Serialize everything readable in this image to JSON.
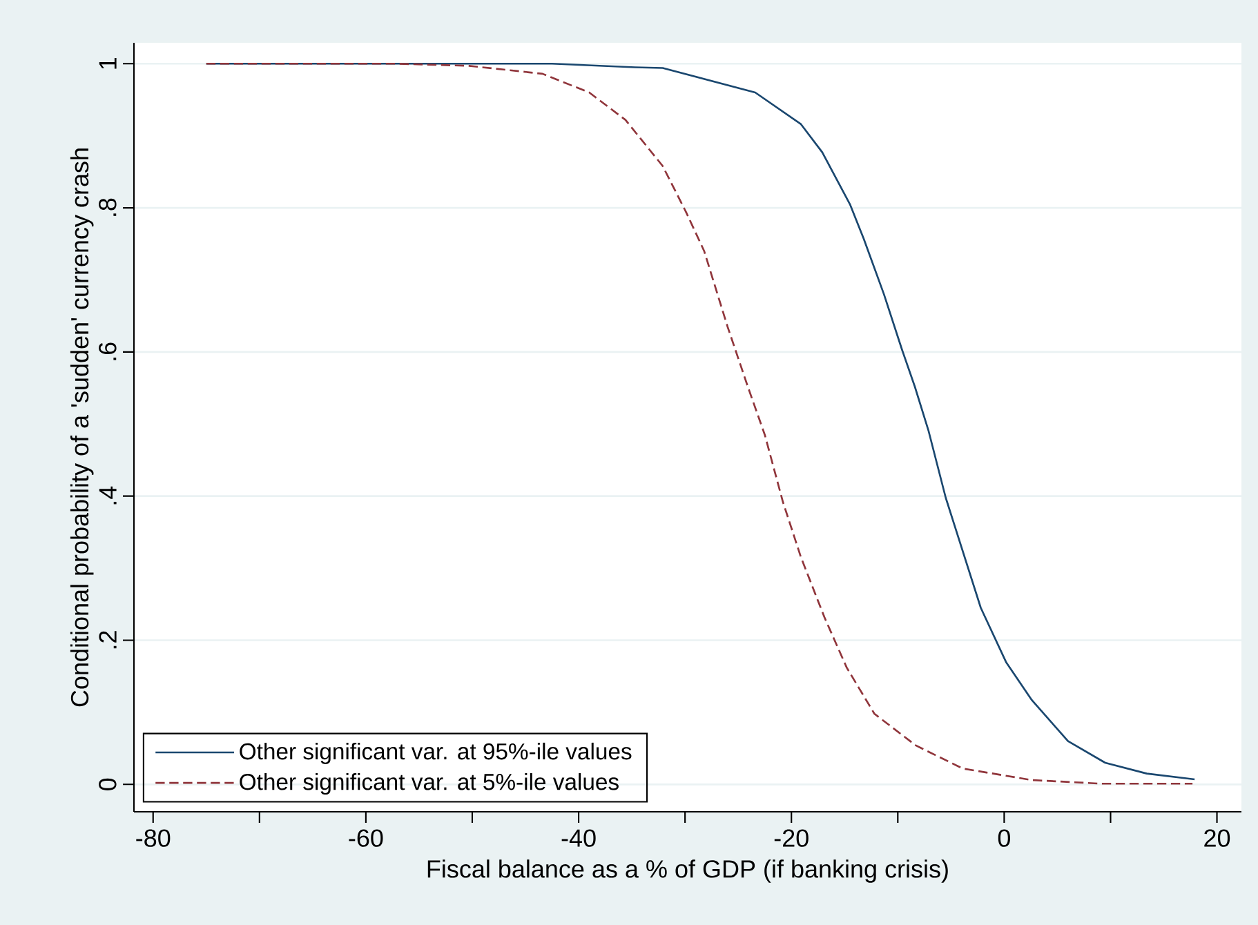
{
  "chart_data": {
    "type": "line",
    "xlabel": "Fiscal balance as a % of GDP (if banking crisis)",
    "ylabel": "Conditional probability of a 'sudden' currency crash",
    "xlim": [
      -81.8,
      22.3
    ],
    "ylim": [
      -0.038,
      1.029
    ],
    "xticks": [
      -80,
      {
        "value": -70,
        "label": null
      },
      -60,
      {
        "value": -50,
        "label": null
      },
      -40,
      {
        "value": -30,
        "label": null
      },
      -20,
      {
        "value": -10,
        "label": null
      },
      0,
      {
        "value": 10,
        "label": null
      },
      20
    ],
    "yticks": [
      0,
      {
        "value": 0.2,
        "label": ".2"
      },
      {
        "value": 0.4,
        "label": ".4"
      },
      {
        "value": 0.6,
        "label": ".6"
      },
      {
        "value": 0.8,
        "label": ".8"
      },
      1
    ],
    "grid": "y",
    "legend": "bottom left",
    "series": [
      {
        "name": "Other significant var. at 95%-ile values",
        "color": "#1a476f",
        "line_style": "solid",
        "x": [
          -75,
          -42.5,
          -34.7,
          -32.1,
          -23.4,
          -19.1,
          -17.1,
          -14.5,
          -13.2,
          -11.3,
          -9.6,
          -8.4,
          -7.1,
          -5.5,
          -2.2,
          0.2,
          2.6,
          6.0,
          9.5,
          13.4,
          17.9
        ],
        "values": [
          1.0,
          1.0,
          0.995,
          0.994,
          0.96,
          0.916,
          0.877,
          0.805,
          0.757,
          0.68,
          0.603,
          0.552,
          0.49,
          0.398,
          0.245,
          0.169,
          0.117,
          0.06,
          0.03,
          0.015,
          0.007
        ]
      },
      {
        "name": "Other significant var. at 5%-ile values",
        "color": "#90353b",
        "line_style": "dashed",
        "x": [
          -75,
          -57.2,
          -50.3,
          -43.4,
          -39.0,
          -35.6,
          -32.1,
          -29.9,
          -28.2,
          -26.0,
          -24.1,
          -22.5,
          -20.8,
          -19.1,
          -16.9,
          -14.8,
          -12.2,
          -8.3,
          -3.9,
          2.6,
          9.1,
          17.7
        ],
        "values": [
          1.0,
          1.0,
          0.997,
          0.986,
          0.96,
          0.922,
          0.858,
          0.794,
          0.74,
          0.635,
          0.552,
          0.485,
          0.392,
          0.315,
          0.232,
          0.162,
          0.098,
          0.054,
          0.022,
          0.006,
          0.001,
          0.001
        ]
      }
    ]
  }
}
